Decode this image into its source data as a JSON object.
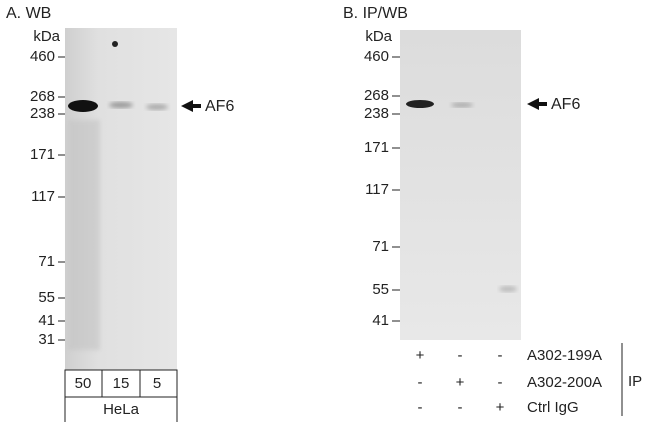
{
  "panel_a": {
    "title": "A. WB",
    "unit": "kDa",
    "markers": [
      "460",
      "268",
      "238",
      "171",
      "117",
      "71",
      "55",
      "41",
      "31"
    ],
    "band_label": "AF6",
    "lanes": [
      "50",
      "15",
      "5"
    ],
    "sample": "HeLa"
  },
  "panel_b": {
    "title": "B. IP/WB",
    "unit": "kDa",
    "markers": [
      "460",
      "268",
      "238",
      "171",
      "117",
      "71",
      "55",
      "41"
    ],
    "band_label": "AF6",
    "rows": [
      {
        "cells": [
          "+",
          "-",
          "-"
        ],
        "label": "A302-199A"
      },
      {
        "cells": [
          "-",
          "+",
          "-"
        ],
        "label": "A302-200A"
      },
      {
        "cells": [
          "-",
          "-",
          "+"
        ],
        "label": "Ctrl IgG"
      }
    ],
    "group_label": "IP"
  }
}
